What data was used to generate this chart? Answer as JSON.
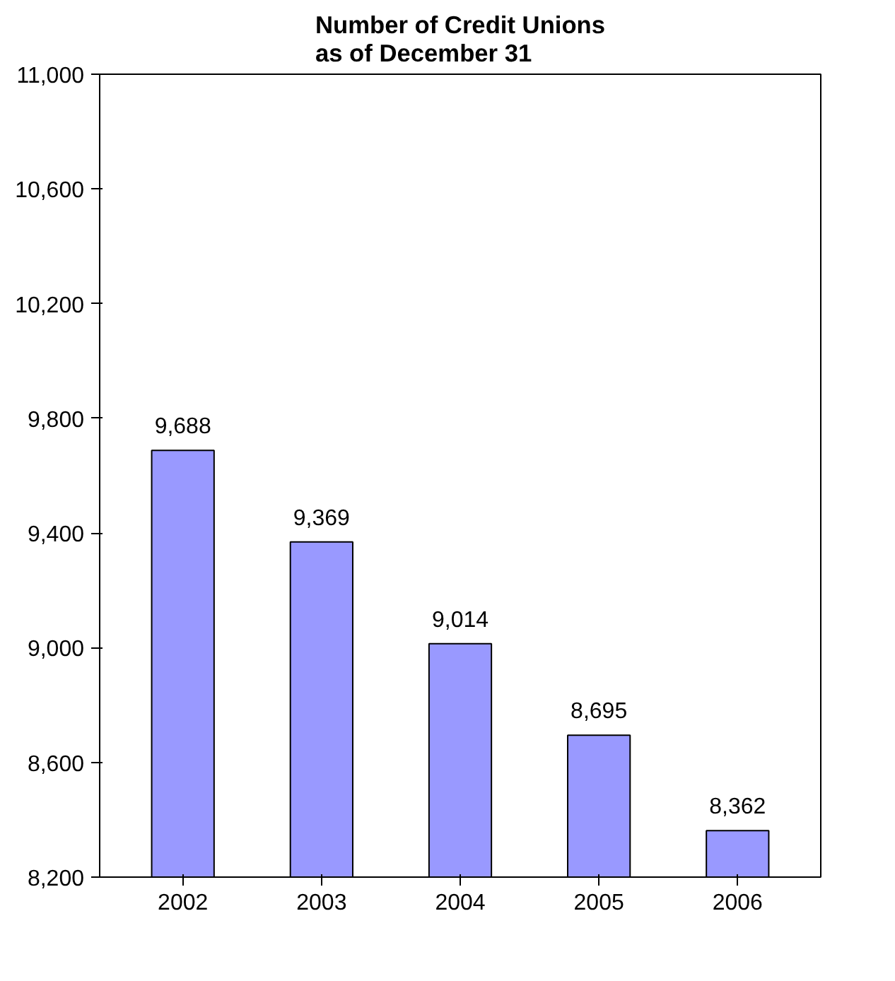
{
  "chart_data": {
    "type": "bar",
    "title": "Number of Credit Unions\nas of December 31",
    "categories": [
      "2002",
      "2003",
      "2004",
      "2005",
      "2006"
    ],
    "values": [
      9688,
      9369,
      9014,
      8695,
      8362
    ],
    "color": "#9999ff",
    "ylim": [
      8200,
      11000
    ],
    "yticks": [
      {
        "value": 8200,
        "label": "8,200"
      },
      {
        "value": 8600,
        "label": "8,600"
      },
      {
        "value": 9000,
        "label": "9,000"
      },
      {
        "value": 9400,
        "label": "9,400"
      },
      {
        "value": 9800,
        "label": "9,800"
      },
      {
        "value": 10200,
        "label": "10,200"
      },
      {
        "value": 10600,
        "label": "10,600"
      },
      {
        "value": 11000,
        "label": "11,000"
      }
    ],
    "grid": false,
    "value_labels": [
      "9,688",
      "9,369",
      "9,014",
      "8,695",
      "8,362"
    ]
  }
}
